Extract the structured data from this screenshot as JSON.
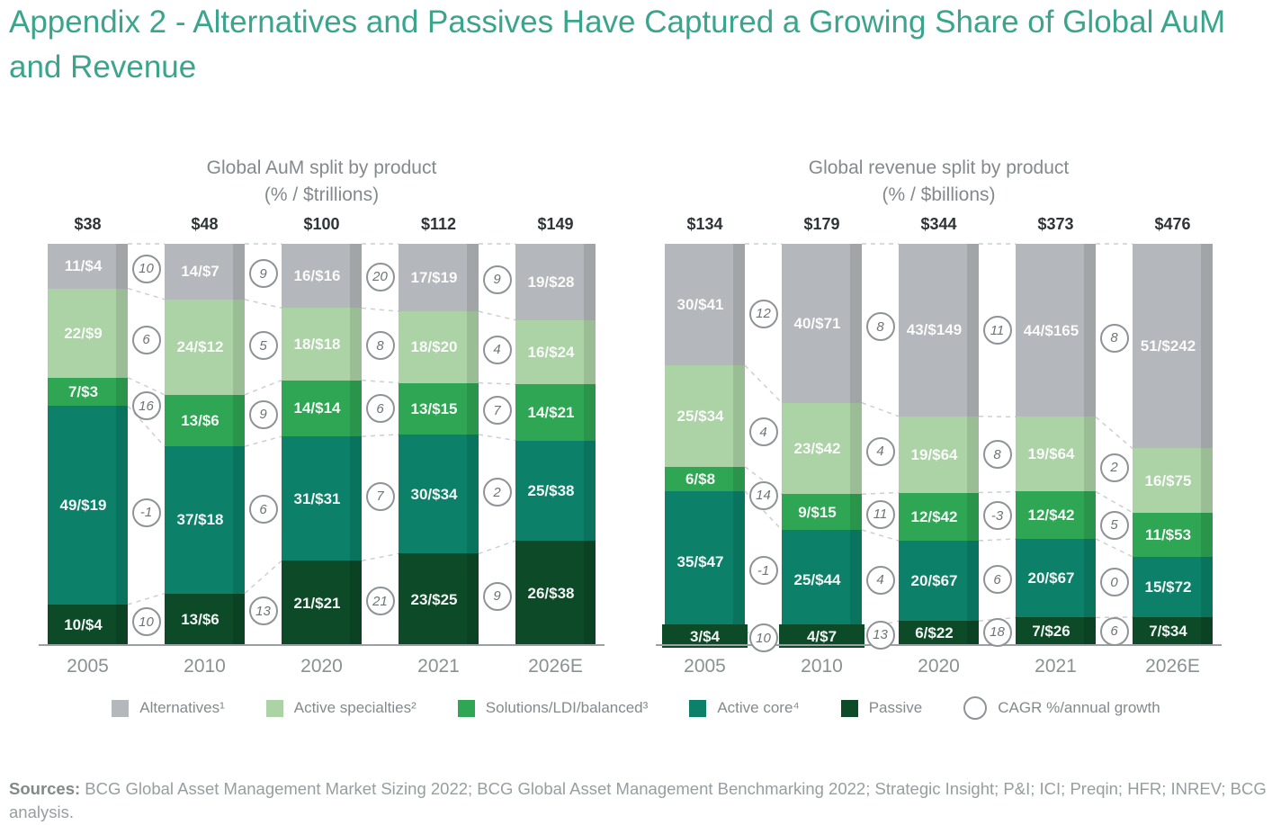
{
  "page_title": "Appendix 2 - Alternatives and Passives Have Captured a Growing Share of Global AuM and Revenue",
  "colors": {
    "accent": "#3aa58c",
    "alternatives": "#b4b8bc",
    "active_specialties": "#acd3a6",
    "solutions": "#2fa653",
    "active_core": "#0c8069",
    "passive": "#0d4a28",
    "axis": "#9ba0a4",
    "dashed_connector": "#cccfd1",
    "circle_border": "#8f9397",
    "gray_text": "#85898d"
  },
  "legend": {
    "items": [
      {
        "label": "Alternatives¹",
        "swatch": "square",
        "color_key": "alternatives"
      },
      {
        "label": "Active specialties²",
        "swatch": "square",
        "color_key": "active_specialties"
      },
      {
        "label": "Solutions/LDI/balanced³",
        "swatch": "square",
        "color_key": "solutions"
      },
      {
        "label": "Active core⁴",
        "swatch": "square",
        "color_key": "active_core"
      },
      {
        "label": "Passive",
        "swatch": "square",
        "color_key": "passive"
      },
      {
        "label": "CAGR %/annual growth",
        "swatch": "circle",
        "color_key": null
      }
    ]
  },
  "sources": {
    "label": "Sources:",
    "text": " BCG Global Asset Management Market Sizing 2022; BCG Global Asset Management Benchmarking 2022; Strategic Insight; P&I; ICI; Preqin; HFR; INREV; BCG analysis."
  },
  "chart_data": [
    {
      "type": "bar",
      "stacked": true,
      "title": "Global AuM split by product",
      "subtitle": "(% / $trillions)",
      "unit": "$trillions",
      "categories": [
        "2005",
        "2010",
        "2020",
        "2021",
        "2026E"
      ],
      "totals": [
        "$38",
        "$48",
        "$100",
        "$112",
        "$149"
      ],
      "series_order": "top-to-bottom",
      "series": [
        {
          "name": "Alternatives",
          "color_key": "alternatives",
          "pct": [
            11,
            14,
            16,
            17,
            19
          ],
          "labels": [
            "11/$4",
            "14/$7",
            "16/$16",
            "17/$19",
            "19/$28"
          ]
        },
        {
          "name": "Active specialties",
          "color_key": "active_specialties",
          "pct": [
            22,
            24,
            18,
            18,
            16
          ],
          "labels": [
            "22/$9",
            "24/$12",
            "18/$18",
            "18/$20",
            "16/$24"
          ]
        },
        {
          "name": "Solutions/LDI/balanced",
          "color_key": "solutions",
          "pct": [
            7,
            13,
            14,
            13,
            14
          ],
          "labels": [
            "7/$3",
            "13/$6",
            "14/$14",
            "13/$15",
            "14/$21"
          ]
        },
        {
          "name": "Active core",
          "color_key": "active_core",
          "pct": [
            49,
            37,
            31,
            30,
            25
          ],
          "labels": [
            "49/$19",
            "37/$18",
            "31/$31",
            "30/$34",
            "25/$38"
          ]
        },
        {
          "name": "Passive",
          "color_key": "passive",
          "pct": [
            10,
            13,
            21,
            23,
            26
          ],
          "labels": [
            "10/$4",
            "13/$6",
            "21/$21",
            "23/$25",
            "26/$38"
          ]
        }
      ],
      "cagr_note": "columns are between adjacent years, values listed top-to-bottom (Alternatives, Active specialties, Solutions, Active core, Passive)",
      "cagr_columns": [
        [
          10,
          6,
          16,
          -1,
          10
        ],
        [
          9,
          5,
          9,
          6,
          13
        ],
        [
          20,
          8,
          6,
          7,
          21
        ],
        [
          9,
          4,
          7,
          2,
          9
        ]
      ]
    },
    {
      "type": "bar",
      "stacked": true,
      "title": "Global revenue split by product",
      "subtitle": "(% / $billions)",
      "unit": "$billions",
      "categories": [
        "2005",
        "2010",
        "2020",
        "2021",
        "2026E"
      ],
      "totals": [
        "$134",
        "$179",
        "$344",
        "$373",
        "$476"
      ],
      "series_order": "top-to-bottom",
      "series": [
        {
          "name": "Alternatives",
          "color_key": "alternatives",
          "pct": [
            30,
            40,
            43,
            44,
            51
          ],
          "labels": [
            "30/$41",
            "40/$71",
            "43/$149",
            "44/$165",
            "51/$242"
          ]
        },
        {
          "name": "Active specialties",
          "color_key": "active_specialties",
          "pct": [
            25,
            23,
            19,
            19,
            16
          ],
          "labels": [
            "25/$34",
            "23/$42",
            "19/$64",
            "19/$64",
            "16/$75"
          ]
        },
        {
          "name": "Solutions/LDI/balanced",
          "color_key": "solutions",
          "pct": [
            6,
            9,
            12,
            12,
            11
          ],
          "labels": [
            "6/$8",
            "9/$15",
            "12/$42",
            "12/$42",
            "11/$53"
          ]
        },
        {
          "name": "Active core",
          "color_key": "active_core",
          "pct": [
            35,
            25,
            20,
            20,
            15
          ],
          "labels": [
            "35/$47",
            "25/$44",
            "20/$67",
            "20/$67",
            "15/$72"
          ]
        },
        {
          "name": "Passive",
          "color_key": "passive",
          "pct": [
            3,
            4,
            6,
            7,
            7
          ],
          "labels": [
            "3/$4",
            "4/$7",
            "6/$22",
            "7/$26",
            "7/$34"
          ]
        }
      ],
      "cagr_note": "columns are between adjacent years, values listed top-to-bottom (Alternatives, Active specialties, Solutions, Active core, Passive)",
      "cagr_columns": [
        [
          12,
          4,
          14,
          -1,
          10
        ],
        [
          8,
          4,
          11,
          4,
          13
        ],
        [
          11,
          8,
          -3,
          6,
          18
        ],
        [
          8,
          2,
          5,
          0,
          6
        ]
      ]
    }
  ]
}
